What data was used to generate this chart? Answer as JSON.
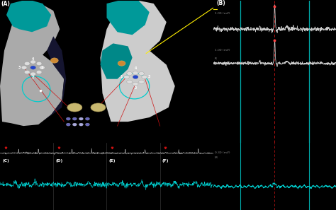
{
  "bg_color": "#000000",
  "label_A": "(A)",
  "label_B": "(B)",
  "label_C": "(C)",
  "label_D": "(D)",
  "label_E": "(E)",
  "label_F": "(F)",
  "annotation_1mV_top": "1.00 (mV)",
  "annotation_1mV_mid": "1.00 (mV)",
  "annotation_030mV": "0.30 (mV)",
  "label_R": "R",
  "label_VS": "VS",
  "label_M": "M",
  "heart_left_color": "#aaaaaa",
  "heart_right_color": "#c0c0c0",
  "teal_color": "#00bbbb",
  "dark_navy": "#1a1a3a",
  "ecg_bg_top": "#071407",
  "ecg_bg_mid": "#071407",
  "ecg_bg_bot": "#030d0d",
  "ecg_white": "#dddddd",
  "ecg_cyan": "#00ddcc",
  "sep_cyan": "#00aaaa",
  "dashed_red": "#cc2222",
  "yellow": "#ffdd00",
  "red_line": "#cc2222",
  "orange_dot": "#ddaa44",
  "blue_dot": "#2244cc",
  "white_dot": "#dddddd"
}
